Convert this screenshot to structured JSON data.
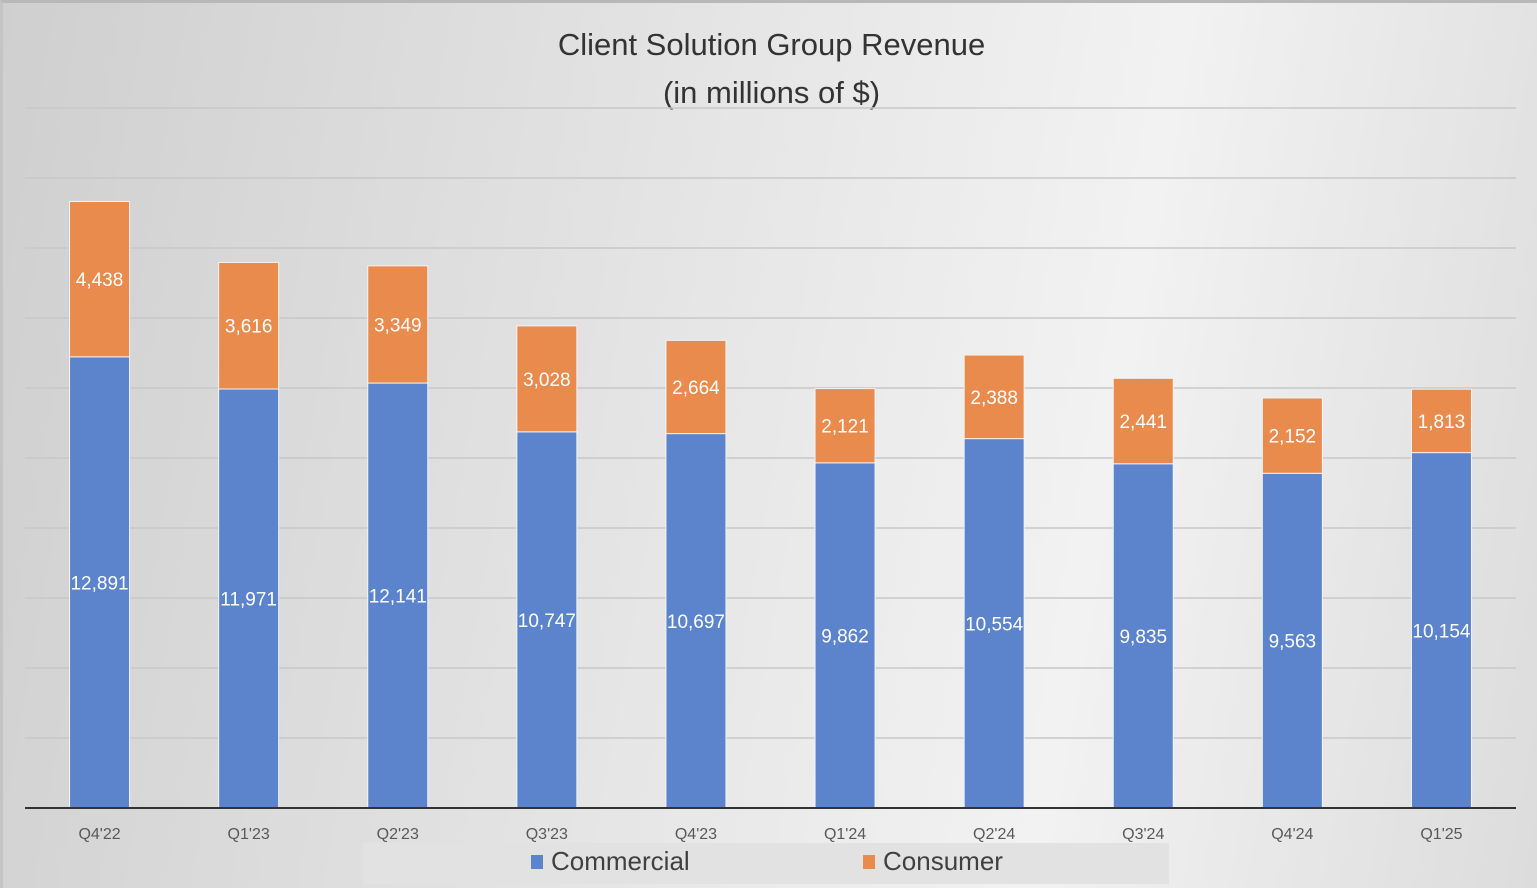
{
  "chart_data": {
    "type": "bar",
    "stacked": true,
    "title": "Client Solution Group Revenue",
    "subtitle": "(in millions of $)",
    "xlabel": "",
    "ylabel": "",
    "ylim": [
      0,
      20000
    ],
    "ytick_step": 2000,
    "grid": true,
    "legend_position": "bottom",
    "categories": [
      "Q4'22",
      "Q1'23",
      "Q2'23",
      "Q3'23",
      "Q4'23",
      "Q1'24",
      "Q2'24",
      "Q3'24",
      "Q4'24",
      "Q1'25"
    ],
    "series": [
      {
        "name": "Commercial",
        "color": "#5b84cc",
        "values": [
          12891,
          11971,
          12141,
          10747,
          10697,
          9862,
          10554,
          9835,
          9563,
          10154
        ],
        "labels": [
          "12,891",
          "11,971",
          "12,141",
          "10,747",
          "10,697",
          "9,862",
          "10,554",
          "9,835",
          "9,563",
          "10,154"
        ]
      },
      {
        "name": "Consumer",
        "color": "#e98b4c",
        "values": [
          4438,
          3616,
          3349,
          3028,
          2664,
          2121,
          2388,
          2441,
          2152,
          1813
        ],
        "labels": [
          "4,438",
          "3,616",
          "3,349",
          "3,028",
          "2,664",
          "2,121",
          "2,388",
          "2,441",
          "2,152",
          "1,813"
        ]
      }
    ]
  }
}
